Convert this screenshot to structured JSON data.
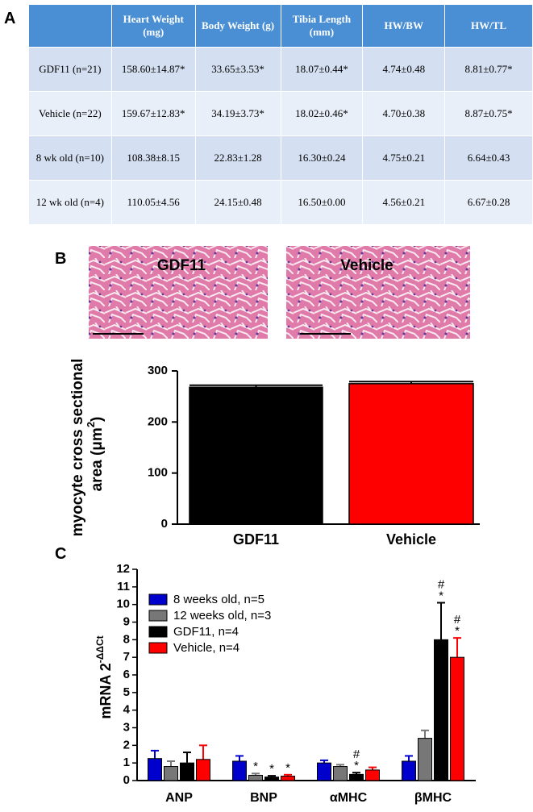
{
  "panel_labels": [
    "A",
    "B",
    "C"
  ],
  "table": {
    "header": [
      "Heart Weight (mg)",
      "Body Weight (g)",
      "Tibia Length (mm)",
      "HW/BW",
      "HW/TL"
    ],
    "rows": [
      [
        "GDF11 (n=21)",
        "158.60±14.87*",
        "33.65±3.53*",
        "18.07±0.44*",
        "4.74±0.48",
        "8.81±0.77*"
      ],
      [
        "Vehicle (n=22)",
        "159.67±12.83*",
        "34.19±3.73*",
        "18.02±0.46*",
        "4.70±0.38",
        "8.87±0.75*"
      ],
      [
        "8 wk old (n=10)",
        "108.38±8.15",
        "22.83±1.28",
        "16.30±0.24",
        "4.75±0.21",
        "6.64±0.43"
      ],
      [
        "12 wk old (n=4)",
        "110.05±4.56",
        "24.15±0.48",
        "16.50±0.00",
        "4.56±0.21",
        "6.67±0.28"
      ]
    ]
  },
  "images": [
    "GDF11",
    "Vehicle"
  ],
  "chart_data": [
    {
      "type": "bar",
      "ylabel": [
        "myocyte cross sectional",
        "area (μm"
      ],
      "ylabel_sup": "2",
      "ylabel_end": ")",
      "categories": [
        "GDF11",
        "Vehicle"
      ],
      "values": [
        268,
        275
      ],
      "errors": [
        4,
        4
      ],
      "colors": [
        "#000000",
        "#ff0000"
      ],
      "ylim": [
        0,
        300
      ],
      "yticks": [
        0,
        100,
        200,
        300
      ]
    },
    {
      "type": "grouped_bar",
      "ylabel": "mRNA 2",
      "ylabel_sup": "-ΔΔCt",
      "categories": [
        "ANP",
        "BNP",
        "αMHC",
        "βMHC"
      ],
      "ylim": [
        0,
        12
      ],
      "yticks": [
        0,
        1,
        2,
        3,
        4,
        5,
        6,
        7,
        8,
        9,
        10,
        11,
        12
      ],
      "series": [
        {
          "name": "8 weeks old, n=5",
          "color": "#0000cc",
          "values": [
            1.25,
            1.1,
            1.0,
            1.1
          ],
          "errors": [
            0.45,
            0.3,
            0.15,
            0.3
          ],
          "annotations": [
            null,
            null,
            null,
            null
          ]
        },
        {
          "name": "12 weeks old, n=3",
          "color": "#777777",
          "values": [
            0.8,
            0.3,
            0.8,
            2.4
          ],
          "errors": [
            0.3,
            0.1,
            0.1,
            0.45
          ],
          "annotations": [
            null,
            [
              "*"
            ],
            null,
            null
          ]
        },
        {
          "name": "GDF11, n=4",
          "color": "#000000",
          "values": [
            1.0,
            0.2,
            0.35,
            8.0
          ],
          "errors": [
            0.6,
            0.07,
            0.1,
            2.1
          ],
          "annotations": [
            null,
            [
              "*"
            ],
            [
              "#",
              "*"
            ],
            [
              "#",
              "*"
            ]
          ]
        },
        {
          "name": "Vehicle, n=4",
          "color": "#ff0000",
          "values": [
            1.2,
            0.25,
            0.6,
            7.0
          ],
          "errors": [
            0.8,
            0.08,
            0.15,
            1.1
          ],
          "annotations": [
            null,
            [
              "*"
            ],
            null,
            [
              "#",
              "*"
            ]
          ]
        }
      ]
    }
  ]
}
